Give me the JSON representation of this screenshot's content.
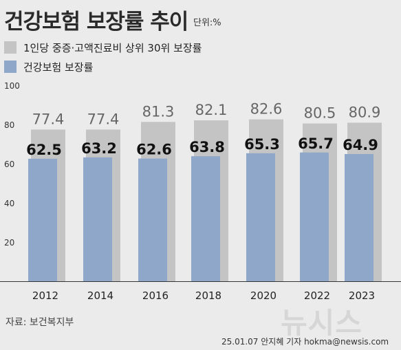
{
  "header": {
    "title": "건강보험 보장률 추이",
    "unit": "단위:%"
  },
  "legend": [
    {
      "label": "1인당 중증·고액진료비 상위 30위 보장률",
      "color": "#c4c4c4"
    },
    {
      "label": "건강보험 보장률",
      "color": "#8fa7c8"
    }
  ],
  "chart_data": {
    "type": "bar",
    "categories": [
      "2012",
      "2014",
      "2016",
      "2018",
      "2020",
      "2022",
      "2023"
    ],
    "series": [
      {
        "name": "1인당 중증·고액진료비 상위 30위 보장률",
        "values": [
          77.4,
          77.4,
          81.3,
          82.1,
          82.6,
          80.5,
          80.9
        ],
        "color": "#c4c4c4"
      },
      {
        "name": "건강보험 보장률",
        "values": [
          62.5,
          63.2,
          62.6,
          63.8,
          65.3,
          65.7,
          64.9
        ],
        "color": "#8fa7c8"
      }
    ],
    "yticks": [
      20,
      40,
      60,
      80,
      100
    ],
    "ylim": [
      0,
      100
    ],
    "grid": false
  },
  "footer": {
    "source": "자료: 보건복지부",
    "byline": "25.01.07 안지혜 기자 hokma@newsis.com",
    "watermark": "뉴시스"
  }
}
